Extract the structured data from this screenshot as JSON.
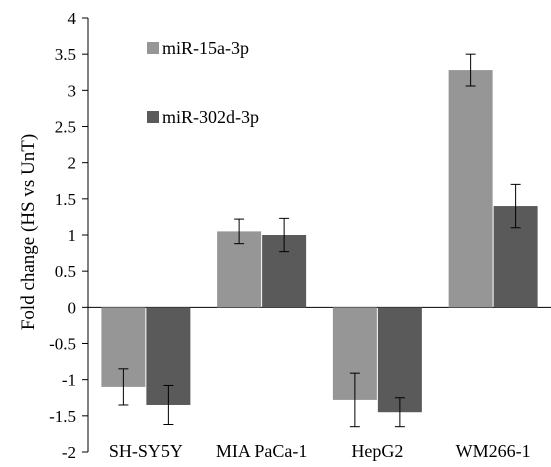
{
  "chart_data": {
    "type": "bar",
    "categories": [
      "SH-SY5Y",
      "MIA PaCa-1",
      "HepG2",
      "WM266-1"
    ],
    "series": [
      {
        "name": "miR-15a-3p",
        "color": "#969696",
        "values": [
          -1.1,
          1.05,
          -1.28,
          3.28
        ],
        "errors": [
          0.25,
          0.17,
          0.37,
          0.22
        ]
      },
      {
        "name": "miR-302d-3p",
        "color": "#5a5a5a",
        "values": [
          -1.35,
          1.0,
          -1.45,
          1.4
        ],
        "errors": [
          0.27,
          0.23,
          0.2,
          0.3
        ]
      }
    ],
    "title": "",
    "xlabel": "",
    "ylabel": "Fold change (HS vs UnT)",
    "ylim": [
      -2,
      4
    ],
    "yticks": [
      "4",
      "3.5",
      "3",
      "2.5",
      "2",
      "1.5",
      "1",
      "0.5",
      "0",
      "-0.5",
      "-1",
      "-1.5",
      "-2"
    ],
    "legend_position": "top-left",
    "grid": false
  }
}
